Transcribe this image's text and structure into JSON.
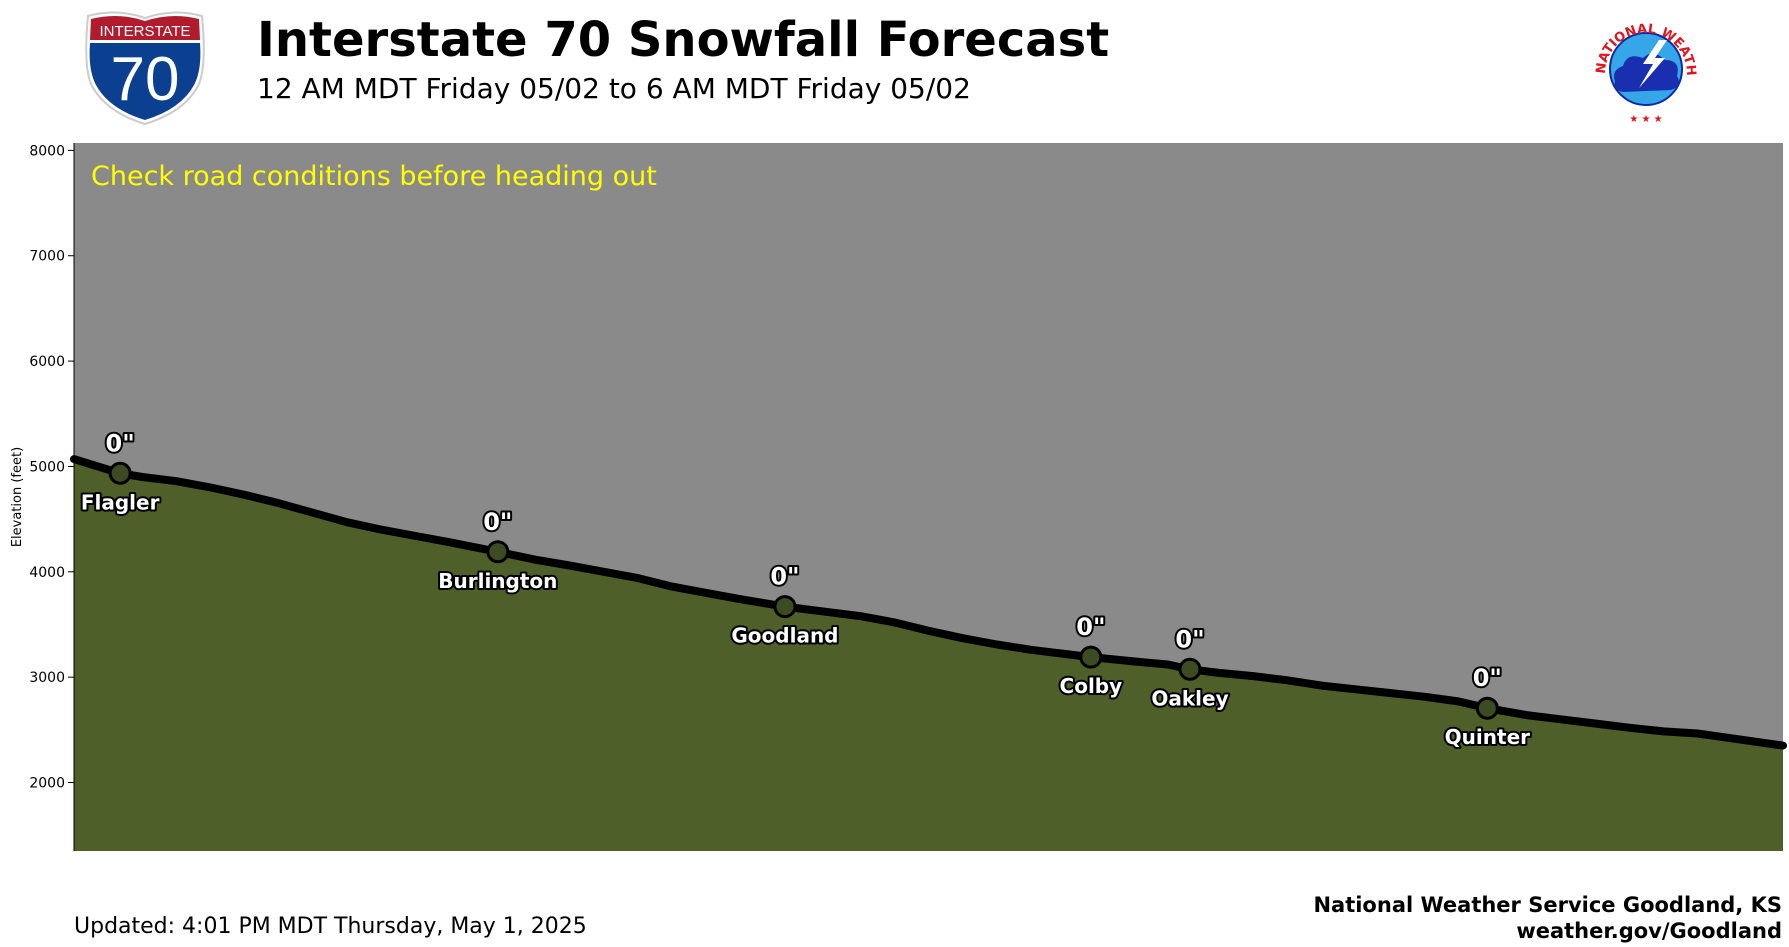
{
  "header": {
    "title": "Interstate 70 Snowfall Forecast",
    "subtitle": "12 AM MDT Friday 05/02 to 6 AM MDT Friday 05/02",
    "shield_top_text": "INTERSTATE",
    "shield_number": "70",
    "nws_logo_text": "NATIONAL WEATHER SERVICE"
  },
  "footer": {
    "updated": "Updated: 4:01 PM MDT Thursday, May 1, 2025",
    "office": "National Weather Service Goodland, KS",
    "website": "weather.gov/Goodland"
  },
  "colors": {
    "sky": "#8a8a8a",
    "ground": "#4f5f29",
    "road": "#000000",
    "marker_fill": "#3e4a22",
    "message": "#ffff00",
    "shield_red": "#b01c2e",
    "shield_blue": "#0b3f8f"
  },
  "chart_data": {
    "type": "area",
    "title": "Interstate 70 Snowfall Forecast",
    "ylabel": "Elevation (feet)",
    "ylim": [
      1350,
      8070
    ],
    "yticks": [
      2000,
      3000,
      4000,
      5000,
      6000,
      7000,
      8000
    ],
    "xlim": [
      0,
      100
    ],
    "grid": false,
    "message": "Check road conditions before heading out",
    "profile": {
      "x": [
        0,
        2.7,
        4,
        6,
        8,
        10,
        12,
        14,
        16,
        18,
        20,
        22,
        24.8,
        27,
        29,
        31,
        33,
        35,
        37,
        39,
        41.6,
        44,
        46,
        48,
        50,
        52,
        54,
        56,
        58,
        59.5,
        62,
        64,
        65.3,
        67,
        69,
        71,
        73,
        75,
        77,
        79,
        81,
        82.7,
        85,
        87,
        89,
        91,
        93,
        95,
        97,
        100
      ],
      "elevation": [
        5070,
        4935,
        4900,
        4860,
        4800,
        4730,
        4650,
        4560,
        4470,
        4400,
        4340,
        4280,
        4190,
        4115,
        4060,
        4000,
        3940,
        3860,
        3800,
        3740,
        3670,
        3620,
        3580,
        3520,
        3440,
        3370,
        3310,
        3260,
        3220,
        3190,
        3150,
        3120,
        3075,
        3040,
        3010,
        2970,
        2920,
        2885,
        2850,
        2815,
        2770,
        2705,
        2640,
        2600,
        2560,
        2520,
        2485,
        2465,
        2420,
        2350
      ]
    },
    "towns": [
      {
        "name": "Flagler",
        "x": 2.7,
        "elevation": 4935,
        "snow": "0\""
      },
      {
        "name": "Burlington",
        "x": 24.8,
        "elevation": 4190,
        "snow": "0\""
      },
      {
        "name": "Goodland",
        "x": 41.6,
        "elevation": 3670,
        "snow": "0\""
      },
      {
        "name": "Colby",
        "x": 59.5,
        "elevation": 3190,
        "snow": "0\""
      },
      {
        "name": "Oakley",
        "x": 65.3,
        "elevation": 3075,
        "snow": "0\""
      },
      {
        "name": "Quinter",
        "x": 82.7,
        "elevation": 2705,
        "snow": "0\""
      }
    ]
  }
}
